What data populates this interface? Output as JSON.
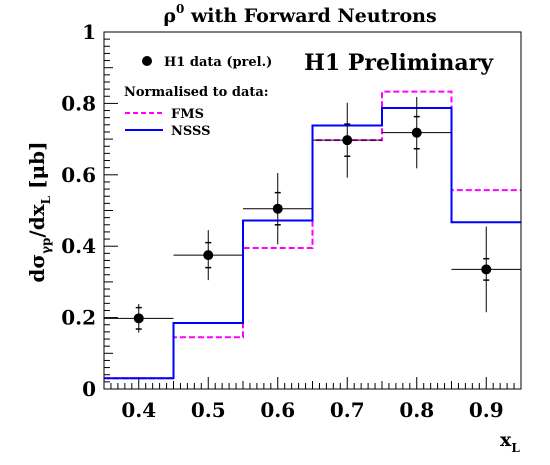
{
  "chart_data": {
    "type": "line",
    "title": {
      "base": "ρ",
      "sup": "0",
      "rest": " with Forward Neutrons"
    },
    "banner": "H1 Preliminary",
    "xlabel": {
      "base": "x",
      "sub": "L"
    },
    "ylabel": {
      "part1": "dσ",
      "sub1": "γp",
      "part2": "/dx",
      "sub2": "L",
      "part3": " [μb]"
    },
    "xlim": [
      0.35,
      0.95
    ],
    "ylim": [
      0,
      1
    ],
    "x_ticks": [
      "0.4",
      "0.5",
      "0.6",
      "0.7",
      "0.8",
      "0.9"
    ],
    "y_ticks": [
      "0",
      "0.2",
      "0.4",
      "0.6",
      "0.8",
      "1"
    ],
    "legend": {
      "data_label": "H1 data (prel.)",
      "header": "Normalised to data:",
      "fms_label": "FMS",
      "nssss_label": "NSSS"
    },
    "bin_edges": [
      0.35,
      0.45,
      0.55,
      0.65,
      0.75,
      0.85,
      0.95
    ],
    "series": [
      {
        "name": "H1 data (prel.)",
        "kind": "points",
        "color": "#000000",
        "x": [
          0.4,
          0.5,
          0.6,
          0.7,
          0.8,
          0.9
        ],
        "y": [
          0.198,
          0.375,
          0.505,
          0.697,
          0.718,
          0.335
        ],
        "xerr": 0.05,
        "yerr_stat": [
          0.03,
          0.035,
          0.045,
          0.045,
          0.045,
          0.03
        ],
        "yerr_tot": [
          0.04,
          0.07,
          0.1,
          0.105,
          0.1,
          0.12
        ]
      },
      {
        "name": "FMS",
        "kind": "histogram",
        "style": "dashed",
        "color": "#ff00ff",
        "values": [
          0.03,
          0.145,
          0.395,
          0.697,
          0.833,
          0.557
        ]
      },
      {
        "name": "NSSS",
        "kind": "histogram",
        "style": "solid",
        "color": "#0000ff",
        "values": [
          0.03,
          0.185,
          0.472,
          0.738,
          0.787,
          0.467
        ]
      }
    ],
    "grid": false,
    "legend_position": "top-left"
  }
}
